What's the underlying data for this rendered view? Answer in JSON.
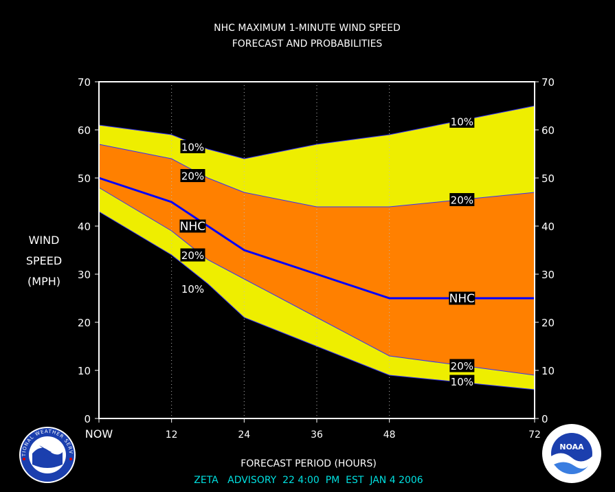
{
  "chart_data": {
    "type": "area",
    "title": "NHC MAXIMUM 1-MINUTE WIND SPEED",
    "subtitle": "FORECAST AND PROBABILITIES",
    "xlabel": "FORECAST PERIOD (HOURS)",
    "ylabel": [
      "WIND",
      "SPEED",
      "(MPH)"
    ],
    "footer": "ZETA   ADVISORY  22 4:00  PM  EST  JAN 4 2006",
    "xlim": [
      0,
      72
    ],
    "ylim": [
      0,
      70
    ],
    "x_ticks": [
      {
        "value": 0,
        "label": "NOW"
      },
      {
        "value": 12,
        "label": "12"
      },
      {
        "value": 24,
        "label": "24"
      },
      {
        "value": 36,
        "label": "36"
      },
      {
        "value": 48,
        "label": "48"
      },
      {
        "value": 72,
        "label": "72"
      }
    ],
    "y_ticks": [
      0,
      10,
      20,
      30,
      40,
      50,
      60,
      70
    ],
    "grid": "vertical dotted",
    "x": [
      0,
      12,
      18,
      24,
      36,
      48,
      60,
      72
    ],
    "series": [
      {
        "name": "10%",
        "role": "upper_10",
        "values": [
          61,
          59,
          56,
          54,
          57,
          59,
          62,
          65
        ]
      },
      {
        "name": "20%",
        "role": "upper_20",
        "values": [
          57,
          54,
          50,
          47,
          44,
          44,
          45.5,
          47
        ]
      },
      {
        "name": "NHC",
        "role": "forecast",
        "values": [
          50,
          45,
          40,
          35,
          30,
          25,
          25,
          25
        ]
      },
      {
        "name": "20%",
        "role": "lower_20",
        "values": [
          48,
          39,
          33,
          29,
          21,
          13,
          11,
          9
        ]
      },
      {
        "name": "10%",
        "role": "lower_10",
        "values": [
          43,
          34,
          28,
          21,
          15,
          9,
          7.5,
          6
        ]
      }
    ],
    "labels": [
      {
        "text": "10%",
        "x": 15.5,
        "y": 56.5
      },
      {
        "text": "20%",
        "x": 15.5,
        "y": 50.5
      },
      {
        "text": "NHC",
        "x": 15.5,
        "y": 40
      },
      {
        "text": "20%",
        "x": 15.5,
        "y": 34
      },
      {
        "text": "10%",
        "x": 15.5,
        "y": 27
      },
      {
        "text": "10%",
        "x": 60,
        "y": 61.8
      },
      {
        "text": "20%",
        "x": 60,
        "y": 45.5
      },
      {
        "text": "NHC",
        "x": 60,
        "y": 25
      },
      {
        "text": "20%",
        "x": 60,
        "y": 11
      },
      {
        "text": "10%",
        "x": 60,
        "y": 7.7
      }
    ],
    "colors": {
      "outer_band": "#eeee00",
      "inner_band": "#ff8000",
      "forecast_line": "#0000ff",
      "background": "#000000",
      "plot_border": "#ffffff",
      "footer_text": "#00e0e0"
    }
  },
  "logos": {
    "left": {
      "name": "nws-logo",
      "text": "NATIONAL WEATHER SERVICE"
    },
    "right": {
      "name": "noaa-logo",
      "text": "NOAA"
    }
  }
}
